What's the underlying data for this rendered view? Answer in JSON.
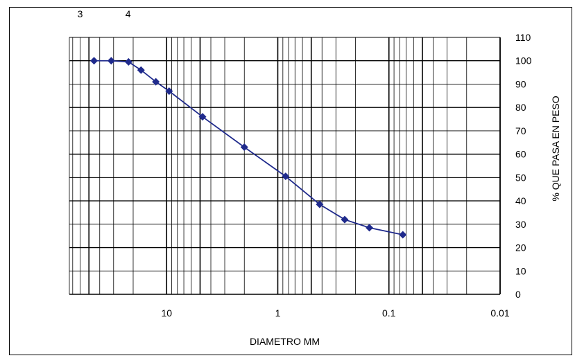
{
  "chart_data": {
    "type": "scatter",
    "title": "",
    "xlabel": "DIAMETRO MM",
    "ylabel": "% QUE PASA EN PESO",
    "x_scale": "log",
    "x_reversed": true,
    "xlim": [
      75,
      0.01
    ],
    "ylim": [
      0,
      110
    ],
    "x_ticks": [
      {
        "value": 10,
        "label": "10"
      },
      {
        "value": 1,
        "label": "1"
      },
      {
        "value": 0.1,
        "label": "0.1"
      },
      {
        "value": 0.01,
        "label": "0.01"
      }
    ],
    "y_ticks": [
      {
        "value": 0,
        "label": "0"
      },
      {
        "value": 10,
        "label": "10"
      },
      {
        "value": 20,
        "label": "20"
      },
      {
        "value": 30,
        "label": "30"
      },
      {
        "value": 40,
        "label": "40"
      },
      {
        "value": 50,
        "label": "50"
      },
      {
        "value": 60,
        "label": "60"
      },
      {
        "value": 70,
        "label": "70"
      },
      {
        "value": 80,
        "label": "80"
      },
      {
        "value": 90,
        "label": "90"
      },
      {
        "value": 100,
        "label": "100"
      },
      {
        "value": 110,
        "label": "110"
      }
    ],
    "y_axis_position": "right",
    "grid": true,
    "line_color": "#1f2a8c",
    "series": [
      {
        "x": [
          45,
          31.5,
          22,
          17,
          12.5,
          9.5,
          4.75,
          2,
          0.85,
          0.42,
          0.25,
          0.15,
          0.075
        ],
        "y": [
          100,
          100,
          99.5,
          96,
          91,
          87,
          76,
          63,
          50.5,
          38.5,
          32,
          28.5,
          25.5
        ]
      }
    ],
    "top_partial_labels": [
      "3",
      "4"
    ]
  }
}
